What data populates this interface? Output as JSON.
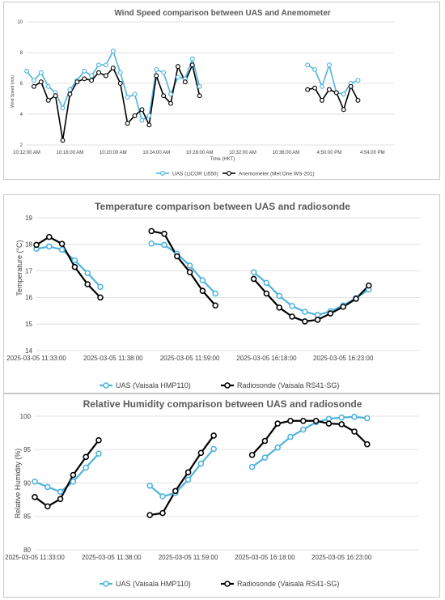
{
  "colors": {
    "uas": "#4fb3dc",
    "reference": "#000000",
    "grid": "#d9d9d9",
    "text": "#404040"
  },
  "chart_data": [
    {
      "type": "line",
      "title": "Wind Speed comparison between UAS and Anemometer",
      "xlabel": "Time (HKT)",
      "ylabel": "Wind Speed (m/s)",
      "ylim": [
        2,
        10
      ],
      "yticks": [
        "2",
        "4",
        "6",
        "8",
        "10"
      ],
      "xticks": [
        {
          "label": "10:12:00 AM",
          "at": 0
        },
        {
          "label": "10:16:00 AM",
          "at": 6
        },
        {
          "label": "10:20:00 AM",
          "at": 12
        },
        {
          "label": "10:24:00 AM",
          "at": 18
        },
        {
          "label": "10:28:00 AM",
          "at": 24
        },
        {
          "label": "10:32:00 AM",
          "at": 30
        },
        {
          "label": "10:36:00 AM",
          "at": 36
        },
        {
          "label": "4:50:00 PM",
          "at": 42
        },
        {
          "label": "4:54:00 PM",
          "at": 48
        }
      ],
      "xrange": [
        0,
        51
      ],
      "grid": true,
      "legend": "bottom",
      "series": [
        {
          "name": "UAS (LiCOR Li550)",
          "color": "#4fb3dc",
          "segments": [
            [
              [
                0,
                6.8
              ],
              [
                1,
                6.2
              ],
              [
                2,
                6.7
              ],
              [
                3,
                5.8
              ],
              [
                4,
                5.4
              ],
              [
                5,
                4.4
              ],
              [
                6,
                5.6
              ],
              [
                7,
                6.2
              ],
              [
                8,
                6.8
              ],
              [
                9,
                6.5
              ],
              [
                10,
                7.2
              ],
              [
                11,
                7.2
              ],
              [
                12,
                8.1
              ],
              [
                13,
                6.7
              ],
              [
                14,
                5.1
              ],
              [
                15,
                5.3
              ],
              [
                16,
                3.6
              ],
              [
                17,
                3.9
              ],
              [
                18,
                6.9
              ],
              [
                19,
                6.7
              ],
              [
                20,
                5.3
              ],
              [
                21,
                6.4
              ],
              [
                22,
                6.3
              ],
              [
                23,
                7.6
              ],
              [
                24,
                5.8
              ]
            ],
            [
              [
                39,
                7.2
              ],
              [
                40,
                6.9
              ],
              [
                41,
                5.8
              ],
              [
                42,
                7.2
              ],
              [
                43,
                5.4
              ],
              [
                44,
                5.3
              ],
              [
                45,
                6.0
              ],
              [
                46,
                6.2
              ]
            ]
          ]
        },
        {
          "name": "Anemometer (Met One WS-201)",
          "color": "#000000",
          "segments": [
            [
              [
                1,
                5.8
              ],
              [
                2,
                6.1
              ],
              [
                3,
                4.9
              ],
              [
                4,
                5.2
              ],
              [
                5,
                2.3
              ],
              [
                6,
                5.3
              ],
              [
                7,
                6.1
              ],
              [
                8,
                6.3
              ],
              [
                9,
                6.2
              ],
              [
                10,
                6.7
              ],
              [
                11,
                6.5
              ],
              [
                12,
                7.0
              ],
              [
                13,
                6.0
              ],
              [
                14,
                3.4
              ],
              [
                15,
                3.9
              ],
              [
                16,
                4.3
              ],
              [
                17,
                3.3
              ],
              [
                18,
                6.5
              ],
              [
                19,
                5.2
              ],
              [
                20,
                4.7
              ],
              [
                21,
                7.1
              ],
              [
                22,
                6.1
              ],
              [
                23,
                7.2
              ],
              [
                24,
                5.2
              ]
            ],
            [
              [
                39,
                5.6
              ],
              [
                40,
                5.7
              ],
              [
                41,
                4.9
              ],
              [
                42,
                5.6
              ],
              [
                43,
                5.4
              ],
              [
                44,
                4.3
              ],
              [
                45,
                5.8
              ],
              [
                46,
                4.9
              ]
            ]
          ]
        }
      ]
    },
    {
      "type": "line",
      "title": "Temperature comparison between UAS and radiosonde",
      "xlabel": "",
      "ylabel": "Temperature (°C)",
      "ylim": [
        14,
        19
      ],
      "yticks": [
        "14",
        "15",
        "16",
        "17",
        "18",
        "19"
      ],
      "xticks": [
        {
          "label": "2025-03-05 11:33:00",
          "at": 0
        },
        {
          "label": "2025-03-05 11:38:00",
          "at": 6
        },
        {
          "label": "2025-03-05 11:59:00",
          "at": 12
        },
        {
          "label": "2025-03-05 16:18:00",
          "at": 18
        },
        {
          "label": "2025-03-05 16:23:00",
          "at": 24
        }
      ],
      "xrange": [
        0,
        30
      ],
      "grid": true,
      "legend": "bottom",
      "series": [
        {
          "name": "UAS (Vaisala HMP110)",
          "color": "#4fb3dc",
          "segments": [
            [
              [
                0,
                17.83
              ],
              [
                1,
                17.92
              ],
              [
                2,
                17.8
              ],
              [
                3,
                17.4
              ],
              [
                4,
                16.92
              ],
              [
                5,
                16.4
              ]
            ],
            [
              [
                9,
                18.03
              ],
              [
                10,
                17.98
              ],
              [
                11,
                17.65
              ],
              [
                12,
                17.2
              ],
              [
                13,
                16.65
              ],
              [
                14,
                16.15
              ]
            ],
            [
              [
                17,
                16.95
              ],
              [
                18,
                16.55
              ],
              [
                19,
                16.06
              ],
              [
                20,
                15.68
              ],
              [
                21,
                15.46
              ],
              [
                22,
                15.34
              ],
              [
                23,
                15.48
              ],
              [
                24,
                15.7
              ],
              [
                25,
                15.98
              ],
              [
                26,
                16.3
              ]
            ]
          ]
        },
        {
          "name": "Radiosonde (Vaisala RS41-SG)",
          "color": "#000000",
          "segments": [
            [
              [
                0,
                17.98
              ],
              [
                1,
                18.28
              ],
              [
                2,
                18.02
              ],
              [
                3,
                17.15
              ],
              [
                4,
                16.5
              ],
              [
                5,
                16.0
              ]
            ],
            [
              [
                9,
                18.5
              ],
              [
                10,
                18.4
              ],
              [
                11,
                17.55
              ],
              [
                12,
                16.95
              ],
              [
                13,
                16.25
              ],
              [
                14,
                15.7
              ]
            ],
            [
              [
                17,
                16.7
              ],
              [
                18,
                16.15
              ],
              [
                19,
                15.62
              ],
              [
                20,
                15.28
              ],
              [
                21,
                15.1
              ],
              [
                22,
                15.16
              ],
              [
                23,
                15.4
              ],
              [
                24,
                15.65
              ],
              [
                25,
                15.95
              ],
              [
                26,
                16.45
              ]
            ]
          ]
        }
      ]
    },
    {
      "type": "line",
      "title": "Relative Humidity comparison between UAS and radiosonde",
      "xlabel": "",
      "ylabel": "Relative Humidity (%)",
      "ylim": [
        80,
        100
      ],
      "yticks": [
        "80",
        "85",
        "90",
        "95",
        "100"
      ],
      "xticks": [
        {
          "label": "2025-03-05 11:33:00",
          "at": 0
        },
        {
          "label": "2025-03-05 11:38:00",
          "at": 6
        },
        {
          "label": "2025-03-05 11:59:00",
          "at": 12
        },
        {
          "label": "2025-03-05 16:18:00",
          "at": 18
        },
        {
          "label": "2025-03-05 16:23:00",
          "at": 24
        }
      ],
      "xrange": [
        0,
        30
      ],
      "grid": true,
      "legend": "bottom",
      "series": [
        {
          "name": "UAS (Vaisala HMP110)",
          "color": "#4fb3dc",
          "segments": [
            [
              [
                0,
                90.2
              ],
              [
                1,
                89.4
              ],
              [
                2,
                88.7
              ],
              [
                3,
                90.2
              ],
              [
                4,
                92.3
              ],
              [
                5,
                94.4
              ]
            ],
            [
              [
                9,
                89.6
              ],
              [
                10,
                88.0
              ],
              [
                11,
                88.5
              ],
              [
                12,
                90.5
              ],
              [
                13,
                92.9
              ],
              [
                14,
                95.1
              ]
            ],
            [
              [
                17,
                92.4
              ],
              [
                18,
                93.8
              ],
              [
                19,
                95.3
              ],
              [
                20,
                96.9
              ],
              [
                21,
                98.0
              ],
              [
                22,
                99.1
              ],
              [
                23,
                99.6
              ],
              [
                24,
                99.8
              ],
              [
                25,
                99.9
              ],
              [
                26,
                99.7
              ]
            ]
          ]
        },
        {
          "name": "Radiosonde (Vaisala RS41-SG)",
          "color": "#000000",
          "segments": [
            [
              [
                0,
                87.9
              ],
              [
                1,
                86.5
              ],
              [
                2,
                87.6
              ],
              [
                3,
                91.2
              ],
              [
                4,
                93.9
              ],
              [
                5,
                96.4
              ]
            ],
            [
              [
                9,
                85.2
              ],
              [
                10,
                85.5
              ],
              [
                11,
                88.8
              ],
              [
                12,
                91.6
              ],
              [
                13,
                94.5
              ],
              [
                14,
                97.1
              ]
            ],
            [
              [
                17,
                94.2
              ],
              [
                18,
                96.3
              ],
              [
                19,
                98.9
              ],
              [
                20,
                99.3
              ],
              [
                21,
                99.3
              ],
              [
                22,
                99.3
              ],
              [
                23,
                98.9
              ],
              [
                24,
                98.8
              ],
              [
                25,
                97.7
              ],
              [
                26,
                95.8
              ]
            ]
          ]
        }
      ]
    }
  ]
}
